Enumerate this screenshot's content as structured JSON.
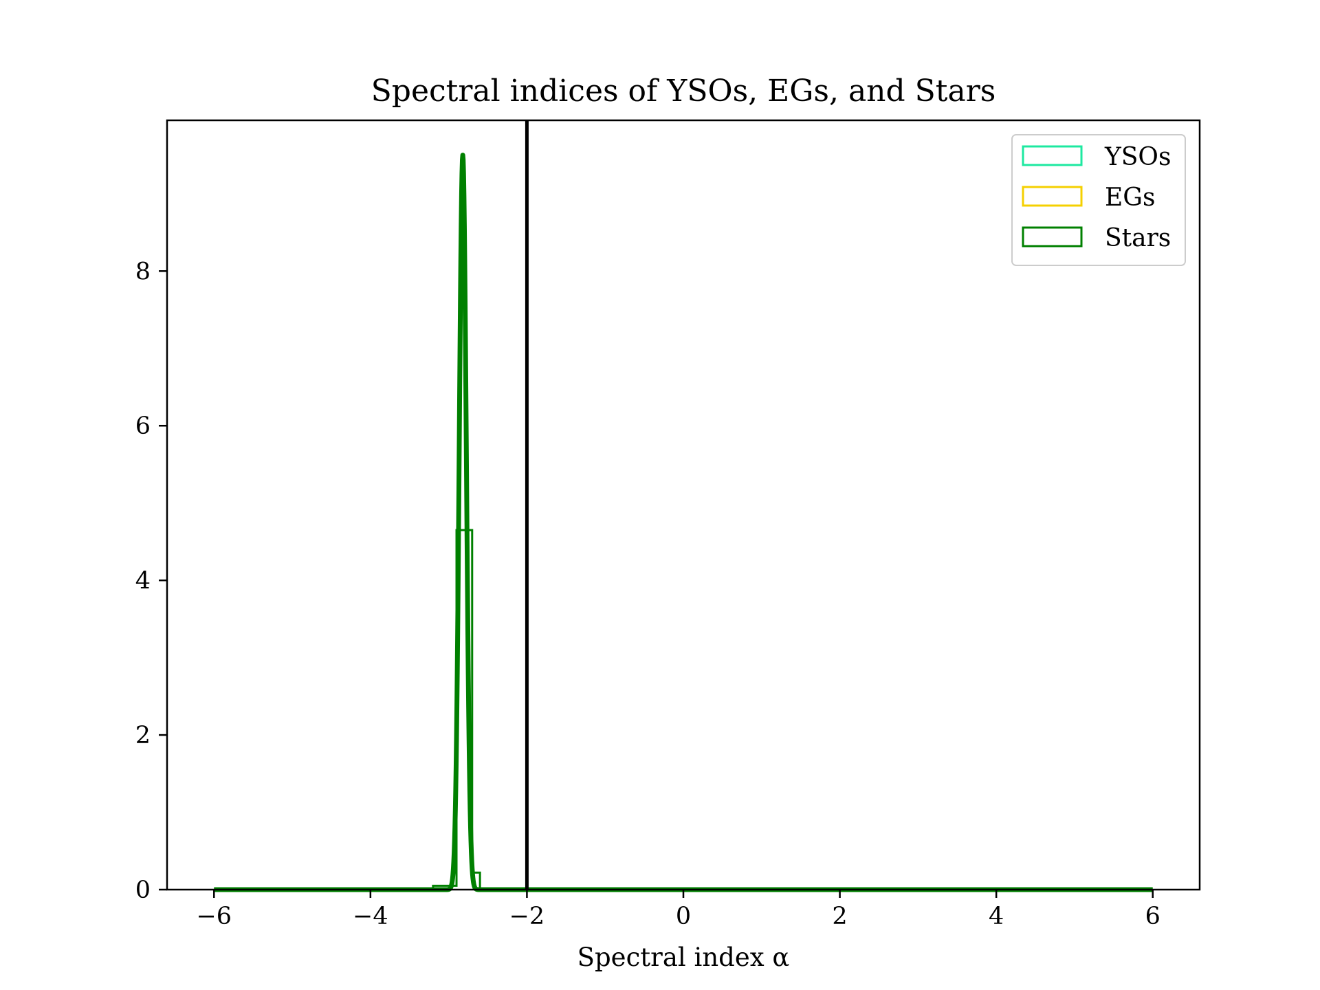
{
  "chart_data": {
    "type": "histogram",
    "title": "Spectral indices of YSOs, EGs, and Stars",
    "xlabel": "Spectral index α",
    "ylabel": "",
    "xlim": [
      -6.6,
      6.6
    ],
    "ylim": [
      0,
      9.95
    ],
    "xticks": [
      -6,
      -4,
      -2,
      0,
      2,
      4,
      6
    ],
    "xtick_labels": [
      "−6",
      "−4",
      "−2",
      "0",
      "2",
      "4",
      "6"
    ],
    "yticks": [
      0,
      2,
      4,
      6,
      8
    ],
    "ytick_labels": [
      "0",
      "2",
      "4",
      "6",
      "8"
    ],
    "grid": false,
    "legend": {
      "placement": "top-right",
      "entries": [
        {
          "label": "YSOs",
          "color": "#1de9a0"
        },
        {
          "label": "EGs",
          "color": "#f5d000"
        },
        {
          "label": "Stars",
          "color": "#008000"
        }
      ]
    },
    "vertical_line": {
      "x": -2,
      "color": "#000000"
    },
    "histogram": {
      "series": "Stars",
      "color": "#008000",
      "bin_edges": [
        -6.0,
        -3.2,
        -3.0,
        -2.9,
        -2.8,
        -2.7,
        -2.6,
        6.0
      ],
      "counts": [
        0,
        0.05,
        0.05,
        4.65,
        4.65,
        0.22,
        0
      ]
    },
    "kde_curve": {
      "series": "Stars",
      "color": "#008000",
      "x_range": [
        -6,
        6
      ],
      "peak_x": -2.82,
      "peak_y": 9.5,
      "sigma": 0.045
    }
  }
}
